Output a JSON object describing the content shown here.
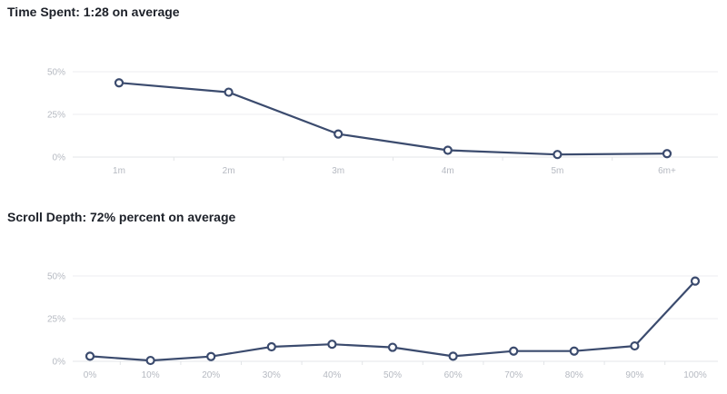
{
  "colors": {
    "line": "#3b4b6e",
    "tick_text": "#b5b9c1",
    "grid": "#eceef1",
    "title_text": "#1d2129"
  },
  "titles": {
    "time_spent": "Time Spent: 1:28 on average",
    "scroll_depth": "Scroll Depth: 72% percent on average"
  },
  "chart_data": [
    {
      "type": "line",
      "title": "Time Spent: 1:28 on average",
      "xlabel": "",
      "ylabel": "",
      "categories": [
        "1m",
        "2m",
        "3m",
        "4m",
        "5m",
        "6m+"
      ],
      "values": [
        43.5,
        38,
        13.5,
        4,
        1.5,
        2
      ],
      "ylim": [
        0,
        50
      ],
      "yticks": [
        "0%",
        "25%",
        "50%"
      ],
      "grid": true
    },
    {
      "type": "line",
      "title": "Scroll Depth: 72% percent on average",
      "xlabel": "",
      "ylabel": "",
      "categories": [
        "0%",
        "10%",
        "20%",
        "30%",
        "40%",
        "50%",
        "60%",
        "70%",
        "80%",
        "90%",
        "100%"
      ],
      "values": [
        3,
        0.5,
        2.8,
        8.5,
        10,
        8.2,
        3,
        6,
        6,
        9,
        47
      ],
      "ylim": [
        0,
        50
      ],
      "yticks": [
        "0%",
        "25%",
        "50%"
      ],
      "grid": true
    }
  ]
}
